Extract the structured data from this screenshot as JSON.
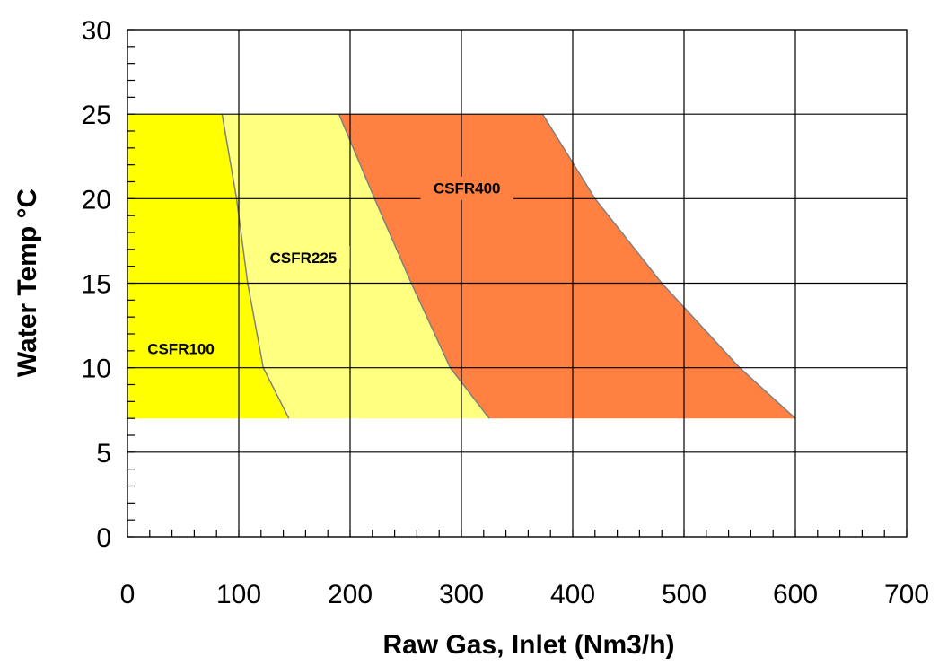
{
  "chart_data": {
    "type": "area",
    "title": "",
    "xlabel": "Raw Gas, Inlet (Nm3/h)",
    "ylabel": "Water Temp °C",
    "xlim": [
      0,
      700
    ],
    "ylim": [
      0,
      30
    ],
    "x_ticks": [
      0,
      100,
      200,
      300,
      400,
      500,
      600,
      700
    ],
    "y_ticks": [
      0,
      5,
      10,
      15,
      20,
      25,
      30
    ],
    "x_minor_step": 20,
    "y_minor_step": 1,
    "grid": true,
    "legend": "none",
    "regions": [
      {
        "name": "CSFR100",
        "color": "#ffff00",
        "label_at": [
          48,
          10.8
        ],
        "label_bg": "#ffff00",
        "boundary": [
          [
            0,
            25
          ],
          [
            85,
            25
          ],
          [
            98,
            20
          ],
          [
            108,
            15
          ],
          [
            122,
            10
          ],
          [
            145,
            7
          ],
          [
            0,
            7
          ]
        ]
      },
      {
        "name": "CSFR225",
        "color": "#ffff80",
        "label_at": [
          158,
          16.2
        ],
        "label_bg": "#ffff80",
        "boundary": [
          [
            85,
            25
          ],
          [
            190,
            25
          ],
          [
            222,
            20
          ],
          [
            255,
            15
          ],
          [
            290,
            10
          ],
          [
            325,
            7
          ],
          [
            145,
            7
          ],
          [
            122,
            10
          ],
          [
            108,
            15
          ],
          [
            98,
            20
          ]
        ]
      },
      {
        "name": "CSFR400",
        "color": "#ff8040",
        "label_at": [
          305,
          20.3
        ],
        "label_bg": "#ff8040",
        "boundary": [
          [
            190,
            25
          ],
          [
            373,
            25
          ],
          [
            420,
            20
          ],
          [
            480,
            15
          ],
          [
            550,
            10
          ],
          [
            600,
            7
          ],
          [
            325,
            7
          ],
          [
            290,
            10
          ],
          [
            255,
            15
          ],
          [
            222,
            20
          ]
        ]
      }
    ]
  }
}
